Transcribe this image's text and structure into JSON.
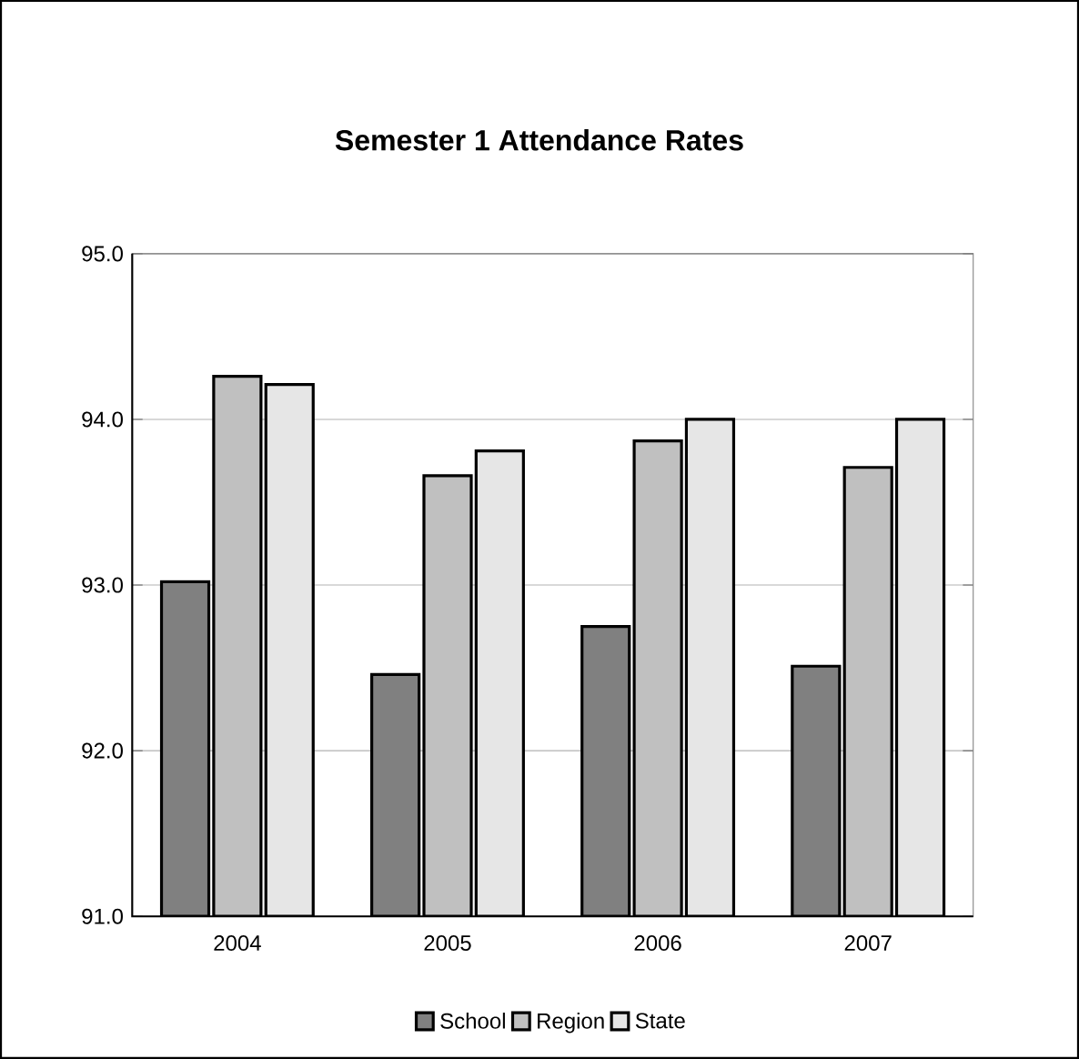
{
  "chart_data": {
    "type": "bar",
    "title": "Semester 1 Attendance Rates",
    "categories": [
      "2004",
      "2005",
      "2006",
      "2007"
    ],
    "series": [
      {
        "name": "School",
        "color": "#808080",
        "values": [
          93.02,
          92.46,
          92.75,
          92.51
        ]
      },
      {
        "name": "Region",
        "color": "#c0c0c0",
        "values": [
          94.26,
          93.66,
          93.87,
          93.71
        ]
      },
      {
        "name": "State",
        "color": "#e6e6e6",
        "values": [
          94.21,
          93.81,
          94.0,
          94.0
        ]
      }
    ],
    "ylim": [
      91,
      95
    ],
    "yticks": [
      {
        "value": 91,
        "label": "91.0"
      },
      {
        "value": 92,
        "label": "92.0"
      },
      {
        "value": 93,
        "label": "93.0"
      },
      {
        "value": 94,
        "label": "94.0"
      },
      {
        "value": 95,
        "label": "95.0"
      }
    ],
    "grid": "y",
    "legend": "bottom"
  }
}
